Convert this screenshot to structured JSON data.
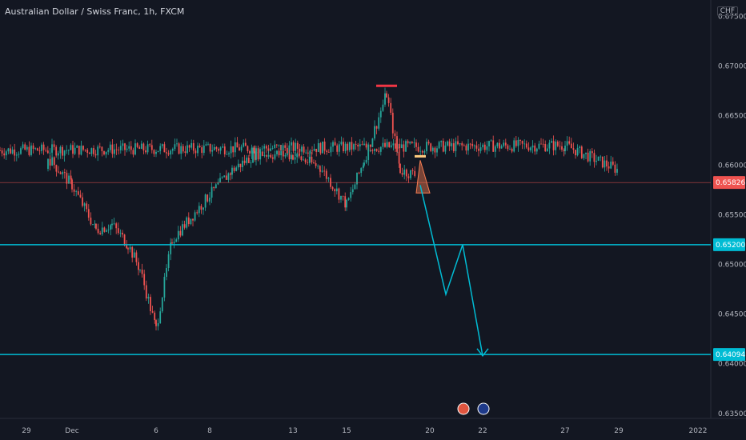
{
  "header": {
    "title": "Australian Dollar / Swiss Franc, 1h, FXCM",
    "currency": "CHF"
  },
  "colors": {
    "background": "#131722",
    "up": "#26a69a",
    "down": "#ef5350",
    "price_line": "#ef5350",
    "level": "#00bcd4",
    "axis_text": "#b2b5be"
  },
  "chart_data": {
    "type": "candlestick",
    "symbol": "Australian Dollar / Swiss Franc",
    "interval": "1h",
    "source": "FXCM",
    "y_axis": {
      "ticks": [
        "0.67500",
        "0.67000",
        "0.66500",
        "0.66000",
        "0.65500",
        "0.65000",
        "0.64500",
        "0.64000",
        "0.63500"
      ],
      "range": [
        0.6345,
        0.676
      ]
    },
    "x_axis": {
      "ticks": [
        "29",
        "Dec",
        "6",
        "8",
        "13",
        "15",
        "20",
        "22",
        "27",
        "29",
        "2022"
      ]
    },
    "price_path": [
      [
        "26",
        0.6615
      ],
      [
        "27",
        0.662
      ],
      [
        "29",
        0.6595
      ],
      [
        "30",
        0.6608
      ],
      [
        "Dec",
        0.658
      ],
      [
        "2",
        0.6535
      ],
      [
        "3",
        0.654
      ],
      [
        "4",
        0.652
      ],
      [
        "5",
        0.6495
      ],
      [
        "6",
        0.6435
      ],
      [
        "7",
        0.6525
      ],
      [
        "8",
        0.657
      ],
      [
        "9",
        0.6595
      ],
      [
        "10",
        0.6612
      ],
      [
        "13",
        0.661
      ],
      [
        "14",
        0.6598
      ],
      [
        "15",
        0.656
      ],
      [
        "16",
        0.6605
      ],
      [
        "17",
        0.6672
      ],
      [
        "18",
        0.6595
      ],
      [
        "19",
        0.659
      ]
    ],
    "current_price": "0.65826",
    "levels": [
      {
        "label": "0.65200",
        "value": 0.652
      },
      {
        "label": "0.64094",
        "value": 0.64094
      }
    ],
    "projection": [
      [
        "19.5",
        0.658
      ],
      [
        "20.3",
        0.647
      ],
      [
        "21.3",
        0.652
      ],
      [
        "22",
        0.6408
      ]
    ],
    "annotations": {
      "peak_marker": {
        "x": "17",
        "value": 0.668,
        "color": "#f23645"
      },
      "minor_marker": {
        "x": "19.5",
        "value": 0.6609,
        "color": "#ffcc80"
      },
      "triangle": {
        "points": [
          [
            "19",
            0.6572
          ],
          [
            "19.5",
            0.6605
          ],
          [
            "20",
            0.6572
          ]
        ],
        "color": "#f57c51"
      }
    },
    "event_icons": [
      "red-event-icon",
      "blue-event-icon"
    ]
  }
}
